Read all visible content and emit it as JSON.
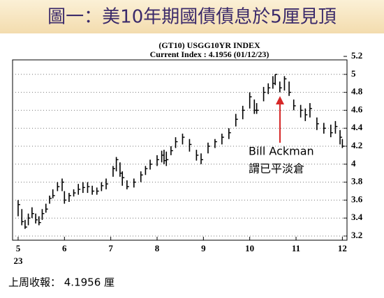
{
  "header": {
    "title": "圖一：美10年期國債債息於5厘見頂"
  },
  "chart_data": {
    "type": "ohlc",
    "title": "(GT10) USGG10YR INDEX",
    "subtitle": "Current Index : 4.1956 (01/12/23)",
    "x": [
      5.0,
      5.08,
      5.15,
      5.22,
      5.3,
      5.38,
      5.45,
      5.52,
      5.6,
      5.68,
      5.75,
      5.85,
      5.95,
      6.0,
      6.1,
      6.2,
      6.3,
      6.4,
      6.5,
      6.6,
      6.7,
      6.8,
      6.9,
      7.05,
      7.12,
      7.2,
      7.25,
      7.35,
      7.5,
      7.65,
      7.75,
      7.85,
      8.0,
      8.1,
      8.15,
      8.2,
      8.3,
      8.4,
      8.55,
      8.7,
      8.85,
      8.95,
      9.1,
      9.25,
      9.4,
      9.55,
      9.7,
      9.85,
      10.0,
      10.1,
      10.15,
      10.3,
      10.4,
      10.5,
      10.55,
      10.65,
      10.75,
      10.85,
      10.95,
      11.1,
      11.2,
      11.3,
      11.45,
      11.6,
      11.75,
      11.85,
      11.95,
      12.0
    ],
    "high": [
      3.6,
      3.5,
      3.38,
      3.45,
      3.52,
      3.45,
      3.42,
      3.5,
      3.56,
      3.65,
      3.72,
      3.8,
      3.84,
      3.7,
      3.68,
      3.72,
      3.78,
      3.8,
      3.8,
      3.76,
      3.74,
      3.8,
      3.84,
      3.98,
      4.08,
      4.02,
      3.92,
      3.82,
      3.84,
      3.92,
      3.98,
      4.05,
      4.1,
      4.15,
      4.16,
      4.14,
      4.2,
      4.3,
      4.34,
      4.28,
      4.16,
      4.12,
      4.24,
      4.28,
      4.34,
      4.4,
      4.56,
      4.65,
      4.8,
      4.72,
      4.68,
      4.86,
      4.9,
      4.98,
      5.0,
      4.92,
      4.98,
      4.92,
      4.72,
      4.66,
      4.62,
      4.68,
      4.52,
      4.46,
      4.44,
      4.48,
      4.38,
      4.28
    ],
    "low": [
      3.42,
      3.32,
      3.28,
      3.32,
      3.4,
      3.34,
      3.32,
      3.38,
      3.46,
      3.56,
      3.62,
      3.7,
      3.7,
      3.56,
      3.58,
      3.64,
      3.66,
      3.68,
      3.68,
      3.66,
      3.66,
      3.7,
      3.72,
      3.86,
      3.92,
      3.86,
      3.76,
      3.72,
      3.74,
      3.8,
      3.88,
      3.94,
      3.98,
      4.02,
      4.0,
      3.98,
      4.1,
      4.18,
      4.22,
      4.14,
      4.04,
      4.0,
      4.12,
      4.18,
      4.22,
      4.28,
      4.42,
      4.5,
      4.62,
      4.56,
      4.56,
      4.7,
      4.78,
      4.84,
      4.88,
      4.8,
      4.82,
      4.76,
      4.6,
      4.52,
      4.48,
      4.52,
      4.38,
      4.34,
      4.3,
      4.34,
      4.22,
      4.18
    ],
    "close": [
      3.55,
      3.36,
      3.3,
      3.4,
      3.45,
      3.38,
      3.35,
      3.45,
      3.5,
      3.62,
      3.65,
      3.75,
      3.8,
      3.6,
      3.65,
      3.68,
      3.72,
      3.74,
      3.75,
      3.7,
      3.7,
      3.76,
      3.78,
      3.95,
      4.05,
      3.9,
      3.85,
      3.75,
      3.8,
      3.88,
      3.95,
      4.0,
      4.05,
      4.1,
      4.04,
      4.05,
      4.15,
      4.25,
      4.3,
      4.22,
      4.1,
      4.05,
      4.2,
      4.25,
      4.3,
      4.35,
      4.5,
      4.6,
      4.75,
      4.6,
      4.6,
      4.8,
      4.85,
      4.9,
      5.0,
      4.85,
      4.95,
      4.8,
      4.65,
      4.6,
      4.55,
      4.62,
      4.45,
      4.4,
      4.35,
      4.42,
      4.3,
      4.2
    ],
    "color": "#000000",
    "xlim": [
      4.88,
      12.1
    ],
    "xticks": [
      5,
      6,
      7,
      8,
      9,
      10,
      11,
      12
    ],
    "x_year_label": "23",
    "ylim": [
      3.2,
      5.2
    ],
    "yticks": [
      3.2,
      3.4,
      3.6,
      3.8,
      4.0,
      4.2,
      4.4,
      4.6,
      4.8,
      5.0,
      5.2
    ],
    "grid": true,
    "annotation": [
      "Bill Ackman",
      "謂已平淡倉"
    ],
    "annotation_color": "#d62828"
  },
  "footer": {
    "text": "上周收報： 4.1956 厘"
  }
}
